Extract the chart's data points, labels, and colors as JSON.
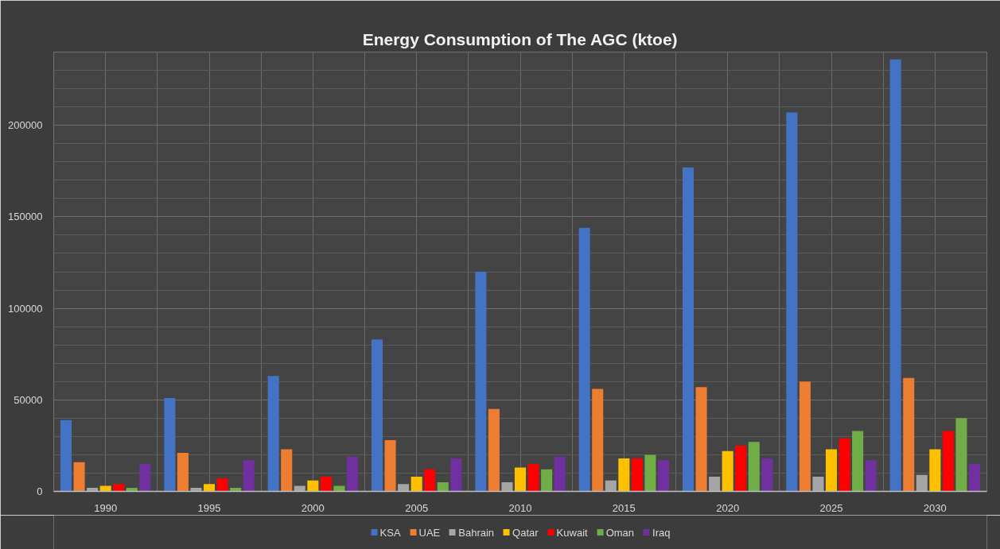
{
  "chart_data": {
    "type": "bar",
    "title": "Energy Consumption of The AGC (ktoe)",
    "categories": [
      "1990",
      "1995",
      "2000",
      "2005",
      "2010",
      "2015",
      "2020",
      "2025",
      "2030"
    ],
    "series": [
      {
        "name": "KSA",
        "color": "#4472c4",
        "values": [
          39000,
          51000,
          63000,
          83000,
          120000,
          144000,
          177000,
          207000,
          236000
        ]
      },
      {
        "name": "UAE",
        "color": "#ed7d31",
        "values": [
          16000,
          21000,
          23000,
          28000,
          45000,
          56000,
          57000,
          60000,
          62000
        ]
      },
      {
        "name": "Bahrain",
        "color": "#a5a5a5",
        "values": [
          2000,
          2000,
          3000,
          4000,
          5000,
          6000,
          8000,
          8000,
          9000
        ]
      },
      {
        "name": "Qatar",
        "color": "#ffc000",
        "values": [
          3000,
          4000,
          6000,
          8000,
          13000,
          18000,
          22000,
          23000,
          23000
        ]
      },
      {
        "name": "Kuwait",
        "color": "#ff0000",
        "values": [
          4000,
          7000,
          8000,
          12000,
          15000,
          18000,
          25000,
          29000,
          33000
        ]
      },
      {
        "name": "Oman",
        "color": "#70ad47",
        "values": [
          2000,
          2000,
          3000,
          5000,
          12000,
          20000,
          27000,
          33000,
          40000
        ]
      },
      {
        "name": "Iraq",
        "color": "#7030a0",
        "values": [
          15000,
          17000,
          19000,
          18000,
          19000,
          17000,
          18000,
          17000,
          15000
        ]
      }
    ],
    "ylim": [
      0,
      240000
    ],
    "yticks": [
      0,
      {
        "value": 10000,
        "label": null
      },
      {
        "value": 20000,
        "label": null
      },
      {
        "value": 30000,
        "label": null
      },
      {
        "value": 40000,
        "label": null
      },
      50000,
      {
        "value": 60000,
        "label": null
      },
      {
        "value": 70000,
        "label": null
      },
      {
        "value": 80000,
        "label": null
      },
      {
        "value": 90000,
        "label": null
      },
      100000,
      {
        "value": 110000,
        "label": null
      },
      {
        "value": 120000,
        "label": null
      },
      {
        "value": 130000,
        "label": null
      },
      {
        "value": 140000,
        "label": null
      },
      150000,
      {
        "value": 160000,
        "label": null
      },
      {
        "value": 170000,
        "label": null
      },
      {
        "value": 180000,
        "label": null
      },
      {
        "value": 190000,
        "label": null
      },
      200000,
      {
        "value": 210000,
        "label": null
      },
      {
        "value": 220000,
        "label": null
      },
      {
        "value": 230000,
        "label": null
      },
      {
        "value": 240000,
        "label": null
      }
    ],
    "grid": true,
    "legend": "bottom"
  }
}
